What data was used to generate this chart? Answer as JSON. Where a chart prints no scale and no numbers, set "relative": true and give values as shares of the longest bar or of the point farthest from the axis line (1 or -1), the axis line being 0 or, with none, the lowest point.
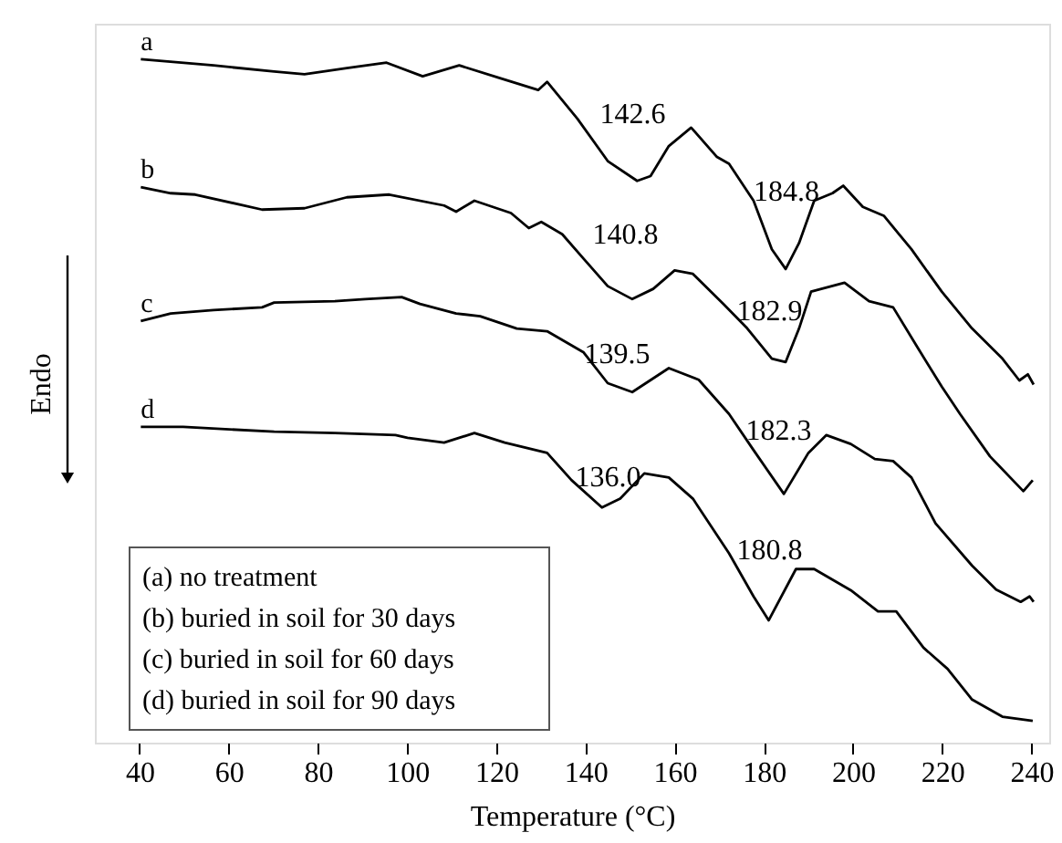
{
  "chart_data": {
    "type": "line",
    "relative": true,
    "xlabel": "Temperature (°C)",
    "ylabel": "Endo",
    "xlim": [
      30,
      244
    ],
    "xticks": [
      40,
      60,
      80,
      100,
      120,
      140,
      160,
      180,
      200,
      220,
      240
    ],
    "tick_labels": "x",
    "grid": false,
    "marker": "none",
    "line_style": "solid",
    "series": [
      {
        "name": "a",
        "color": "#000000",
        "x": [
          40.3,
          56.6,
          70.2,
          77,
          86.5,
          95.4,
          103.5,
          111.7,
          120.5,
          129.4,
          131.4,
          138.2,
          145,
          151.6,
          154.6,
          158.7,
          163.7,
          169.5,
          172.2,
          177.7,
          181.8,
          184.9,
          187.9,
          191.3,
          195.4,
          197.8,
          202.2,
          206.9,
          213.1,
          219.9,
          226.7,
          233.5,
          237.3,
          239.2,
          240.5
        ],
        "values": [
          1.0,
          0.991,
          0.982,
          0.978,
          0.987,
          0.995,
          0.975,
          0.991,
          0.973,
          0.955,
          0.967,
          0.913,
          0.851,
          0.822,
          0.829,
          0.873,
          0.9,
          0.857,
          0.847,
          0.793,
          0.722,
          0.693,
          0.731,
          0.793,
          0.804,
          0.815,
          0.784,
          0.771,
          0.722,
          0.66,
          0.606,
          0.562,
          0.53,
          0.539,
          0.524
        ]
      },
      {
        "name": "b",
        "color": "#000000",
        "x": [
          40.3,
          47,
          52.5,
          67.5,
          77,
          86.5,
          96,
          108.3,
          111,
          115.1,
          123.3,
          127.3,
          130.1,
          134.8,
          139.6,
          145,
          150.5,
          155.2,
          160,
          164.1,
          170.9,
          176.3,
          181.8,
          184.9,
          187.9,
          190.6,
          198.1,
          203.6,
          209,
          214.4,
          219.9,
          224,
          230.7,
          238.2,
          240.3
        ],
        "values": [
          0.813,
          0.804,
          0.802,
          0.78,
          0.782,
          0.798,
          0.802,
          0.786,
          0.777,
          0.793,
          0.775,
          0.753,
          0.762,
          0.744,
          0.708,
          0.668,
          0.649,
          0.664,
          0.691,
          0.686,
          0.642,
          0.606,
          0.562,
          0.557,
          0.606,
          0.66,
          0.673,
          0.646,
          0.637,
          0.579,
          0.521,
          0.481,
          0.419,
          0.368,
          0.384
        ]
      },
      {
        "name": "c",
        "color": "#000000",
        "x": [
          40.3,
          47,
          56.6,
          67.5,
          70.2,
          83.8,
          90.6,
          98.8,
          102.9,
          111,
          116.4,
          124.6,
          131.4,
          139.6,
          145,
          150.5,
          158.7,
          165.4,
          172.2,
          177.7,
          184.5,
          190,
          194,
          199.5,
          204.9,
          209,
          213.1,
          218.5,
          226.7,
          232.1,
          237.6,
          239.6,
          240.5
        ],
        "values": [
          0.617,
          0.628,
          0.633,
          0.637,
          0.644,
          0.646,
          0.649,
          0.652,
          0.642,
          0.628,
          0.624,
          0.606,
          0.602,
          0.571,
          0.526,
          0.513,
          0.548,
          0.531,
          0.481,
          0.428,
          0.364,
          0.424,
          0.45,
          0.437,
          0.415,
          0.412,
          0.388,
          0.321,
          0.259,
          0.224,
          0.206,
          0.214,
          0.206
        ]
      },
      {
        "name": "d",
        "color": "#000000",
        "x": [
          40.3,
          49.8,
          70.2,
          83.8,
          97.4,
          100.1,
          108.3,
          115.1,
          121.9,
          131.4,
          136.9,
          143.7,
          147.8,
          153.2,
          158.7,
          164.1,
          172.2,
          177.7,
          181.1,
          187.2,
          191.3,
          199.5,
          205.6,
          209.7,
          215.8,
          221.2,
          226.7,
          233.5,
          240.3
        ],
        "values": [
          0.462,
          0.462,
          0.455,
          0.453,
          0.45,
          0.446,
          0.439,
          0.453,
          0.439,
          0.424,
          0.384,
          0.344,
          0.357,
          0.394,
          0.388,
          0.357,
          0.277,
          0.214,
          0.179,
          0.254,
          0.254,
          0.223,
          0.192,
          0.192,
          0.139,
          0.108,
          0.063,
          0.038,
          0.032
        ]
      }
    ],
    "annotations": [
      "142.6",
      "184.8",
      "140.8",
      "182.9",
      "139.5",
      "182.3",
      "136.0",
      "180.8",
      "(a) no treatment",
      "(b) buried in soil for 30 days",
      "(c) buried in soil for 60 days",
      "(d) buried in soil for 90 days"
    ]
  }
}
